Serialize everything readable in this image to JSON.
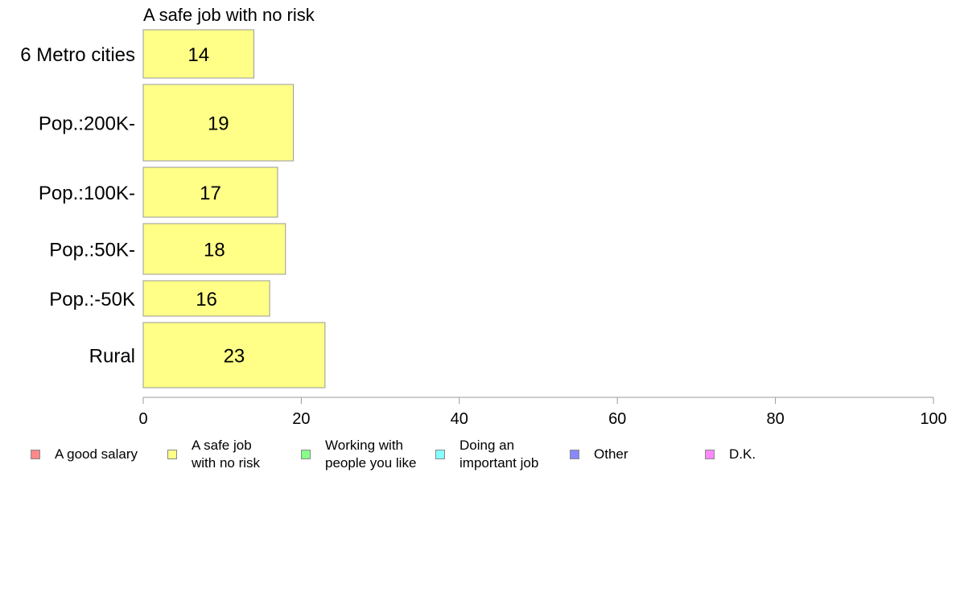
{
  "chart_data": {
    "type": "bar",
    "orientation": "horizontal",
    "title": "A safe job with no risk",
    "categories": [
      "6 Metro cities",
      "Pop.:200K-",
      "Pop.:100K-",
      "Pop.:50K-",
      "Pop.:-50K",
      "Rural"
    ],
    "values": [
      14,
      19,
      17,
      18,
      16,
      23
    ],
    "value_labels": [
      "14",
      "19",
      "17",
      "18",
      "16",
      "23"
    ],
    "xlim": [
      0,
      100
    ],
    "xticks": [
      "0",
      "20",
      "40",
      "60",
      "80",
      "100"
    ],
    "bar_color": "#ffff88",
    "bar_stroke": "#999999",
    "grid": false,
    "legend_position": "bottom",
    "legend": [
      {
        "label": "A good salary",
        "color": "#ff8888"
      },
      {
        "label": "A safe job\nwith no risk",
        "color": "#ffff88"
      },
      {
        "label": "Working with\npeople you like",
        "color": "#88ff88"
      },
      {
        "label": "Doing an\nimportant job",
        "color": "#88ffff"
      },
      {
        "label": "Other",
        "color": "#8888ff"
      },
      {
        "label": "D.K.",
        "color": "#ff88ff"
      }
    ]
  }
}
